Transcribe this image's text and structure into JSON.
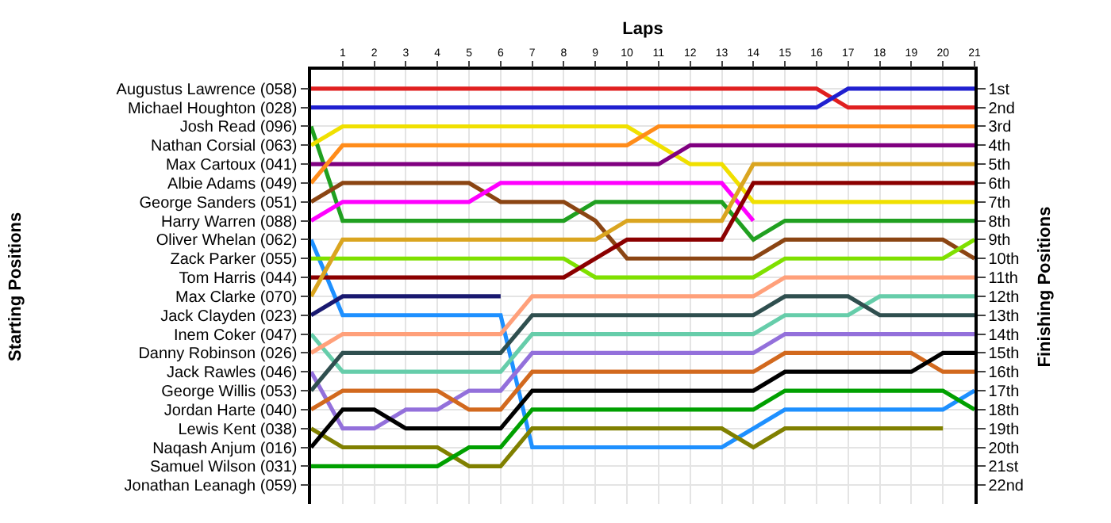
{
  "chart_data": {
    "type": "line",
    "xlabel": "Laps",
    "ylabel": "Finishing Positions",
    "x": [
      0,
      1,
      2,
      3,
      4,
      5,
      6,
      7,
      8,
      9,
      10,
      11,
      12,
      13,
      14,
      15,
      16,
      17,
      18,
      19,
      20,
      21
    ],
    "xlim": [
      0,
      21
    ],
    "xticks": [
      1,
      2,
      3,
      4,
      5,
      6,
      7,
      8,
      9,
      10,
      11,
      12,
      13,
      14,
      15,
      16,
      17,
      18,
      19,
      20,
      21
    ],
    "ylim": [
      23,
      0
    ],
    "yticks": [
      {
        "value": 1,
        "label": "1st"
      },
      {
        "value": 2,
        "label": "2nd"
      },
      {
        "value": 3,
        "label": "3rd"
      },
      {
        "value": 4,
        "label": "4th"
      },
      {
        "value": 5,
        "label": "5th"
      },
      {
        "value": 6,
        "label": "6th"
      },
      {
        "value": 7,
        "label": "7th"
      },
      {
        "value": 8,
        "label": "8th"
      },
      {
        "value": 9,
        "label": "9th"
      },
      {
        "value": 10,
        "label": "10th"
      },
      {
        "value": 11,
        "label": "11th"
      },
      {
        "value": 12,
        "label": "12th"
      },
      {
        "value": 13,
        "label": "13th"
      },
      {
        "value": 14,
        "label": "14th"
      },
      {
        "value": 15,
        "label": "15th"
      },
      {
        "value": 16,
        "label": "16th"
      },
      {
        "value": 17,
        "label": "17th"
      },
      {
        "value": 18,
        "label": "18th"
      },
      {
        "value": 19,
        "label": "19th"
      },
      {
        "value": 20,
        "label": "20th"
      },
      {
        "value": 21,
        "label": "21st"
      },
      {
        "value": 22,
        "label": "22nd"
      }
    ],
    "annotations": [
      "Starting Positions",
      "Jonathan Leanagh (059)"
    ],
    "grid": true,
    "marker": "none",
    "line_style": "solid",
    "legend": false,
    "series": [
      {
        "name": "Augustus Lawrence (058)",
        "color": "#e02020",
        "values": [
          1,
          1,
          1,
          1,
          1,
          1,
          1,
          1,
          1,
          1,
          1,
          1,
          1,
          1,
          1,
          1,
          1,
          2,
          2,
          2,
          2,
          2
        ]
      },
      {
        "name": "Michael Houghton (028)",
        "color": "#2020d0",
        "values": [
          2,
          2,
          2,
          2,
          2,
          2,
          2,
          2,
          2,
          2,
          2,
          2,
          2,
          2,
          2,
          2,
          2,
          1,
          1,
          1,
          1,
          1
        ]
      },
      {
        "name": "Josh Read (096)",
        "color": "#20a020",
        "values": [
          3,
          8,
          8,
          8,
          8,
          8,
          8,
          8,
          8,
          7,
          7,
          7,
          7,
          7,
          9,
          8,
          8,
          8,
          8,
          8,
          8,
          8
        ]
      },
      {
        "name": "Nathan Corsial (063)",
        "color": "#f0e000",
        "values": [
          4,
          3,
          3,
          3,
          3,
          3,
          3,
          3,
          3,
          3,
          3,
          4,
          5,
          5,
          7,
          7,
          7,
          7,
          7,
          7,
          7,
          7
        ]
      },
      {
        "name": "Max Cartoux (041)",
        "color": "#800080",
        "values": [
          5,
          5,
          5,
          5,
          5,
          5,
          5,
          5,
          5,
          5,
          5,
          5,
          4,
          4,
          4,
          4,
          4,
          4,
          4,
          4,
          4,
          4
        ]
      },
      {
        "name": "Albie Adams (049)",
        "color": "#ff8c1a",
        "values": [
          6,
          4,
          4,
          4,
          4,
          4,
          4,
          4,
          4,
          4,
          4,
          3,
          3,
          3,
          3,
          3,
          3,
          3,
          3,
          3,
          3,
          3
        ]
      },
      {
        "name": "George Sanders (051)",
        "color": "#8b4513",
        "values": [
          7,
          6,
          6,
          6,
          6,
          6,
          7,
          7,
          7,
          8,
          10,
          10,
          10,
          10,
          10,
          9,
          9,
          9,
          9,
          9,
          9,
          10
        ]
      },
      {
        "name": "Harry Warren (088)",
        "color": "#ff00ff",
        "values": [
          8,
          7,
          7,
          7,
          7,
          7,
          6,
          6,
          6,
          6,
          6,
          6,
          6,
          6,
          8,
          null,
          null,
          null,
          null,
          null,
          null,
          null
        ]
      },
      {
        "name": "Oliver Whelan (062)",
        "color": "#1e90ff",
        "values": [
          9,
          13,
          13,
          13,
          13,
          13,
          13,
          20,
          20,
          20,
          20,
          20,
          20,
          20,
          19,
          18,
          18,
          18,
          18,
          18,
          18,
          17
        ]
      },
      {
        "name": "Zack Parker (055)",
        "color": "#7fe000",
        "values": [
          10,
          10,
          10,
          10,
          10,
          10,
          10,
          10,
          10,
          11,
          11,
          11,
          11,
          11,
          11,
          10,
          10,
          10,
          10,
          10,
          10,
          9
        ]
      },
      {
        "name": "Tom Harris (044)",
        "color": "#8b0000",
        "values": [
          11,
          11,
          11,
          11,
          11,
          11,
          11,
          11,
          11,
          10,
          9,
          9,
          9,
          9,
          6,
          6,
          6,
          6,
          6,
          6,
          6,
          6
        ]
      },
      {
        "name": "Max Clarke (070)",
        "color": "#daa520",
        "values": [
          12,
          9,
          9,
          9,
          9,
          9,
          9,
          9,
          9,
          9,
          8,
          8,
          8,
          8,
          5,
          5,
          5,
          5,
          5,
          5,
          5,
          5
        ]
      },
      {
        "name": "Jack Clayden (023)",
        "color": "#191970",
        "values": [
          13,
          12,
          12,
          12,
          12,
          12,
          12,
          null,
          null,
          null,
          null,
          null,
          null,
          null,
          null,
          null,
          null,
          null,
          null,
          null,
          null,
          null
        ]
      },
      {
        "name": "Inem Coker (047)",
        "color": "#66cdaa",
        "values": [
          14,
          16,
          16,
          16,
          16,
          16,
          16,
          14,
          14,
          14,
          14,
          14,
          14,
          14,
          14,
          13,
          13,
          13,
          12,
          12,
          12,
          12
        ]
      },
      {
        "name": "Danny Robinson (026)",
        "color": "#ffa07a",
        "values": [
          15,
          14,
          14,
          14,
          14,
          14,
          14,
          12,
          12,
          12,
          12,
          12,
          12,
          12,
          12,
          11,
          11,
          11,
          11,
          11,
          11,
          11
        ]
      },
      {
        "name": "Jack Rawles (046)",
        "color": "#9370db",
        "values": [
          16,
          19,
          19,
          18,
          18,
          17,
          17,
          15,
          15,
          15,
          15,
          15,
          15,
          15,
          15,
          14,
          14,
          14,
          14,
          14,
          14,
          14
        ]
      },
      {
        "name": "George Willis (053)",
        "color": "#2f4f4f",
        "values": [
          17,
          15,
          15,
          15,
          15,
          15,
          15,
          13,
          13,
          13,
          13,
          13,
          13,
          13,
          13,
          12,
          12,
          12,
          13,
          13,
          13,
          13
        ]
      },
      {
        "name": "Jordan Harte (040)",
        "color": "#d2691e",
        "values": [
          18,
          17,
          17,
          17,
          17,
          18,
          18,
          16,
          16,
          16,
          16,
          16,
          16,
          16,
          16,
          15,
          15,
          15,
          15,
          15,
          16,
          16
        ]
      },
      {
        "name": "Lewis Kent (038)",
        "color": "#808000",
        "values": [
          19,
          20,
          20,
          20,
          20,
          21,
          21,
          19,
          19,
          19,
          19,
          19,
          19,
          19,
          20,
          19,
          19,
          19,
          19,
          19,
          19,
          null
        ]
      },
      {
        "name": "Naqash Anjum (016)",
        "color": "#000000",
        "values": [
          20,
          18,
          18,
          19,
          19,
          19,
          19,
          17,
          17,
          17,
          17,
          17,
          17,
          17,
          17,
          16,
          16,
          16,
          16,
          16,
          15,
          15
        ]
      },
      {
        "name": "Samuel Wilson (031)",
        "color": "#00a000",
        "values": [
          21,
          21,
          21,
          21,
          21,
          20,
          20,
          18,
          18,
          18,
          18,
          18,
          18,
          18,
          18,
          17,
          17,
          17,
          17,
          17,
          17,
          18
        ]
      }
    ]
  }
}
